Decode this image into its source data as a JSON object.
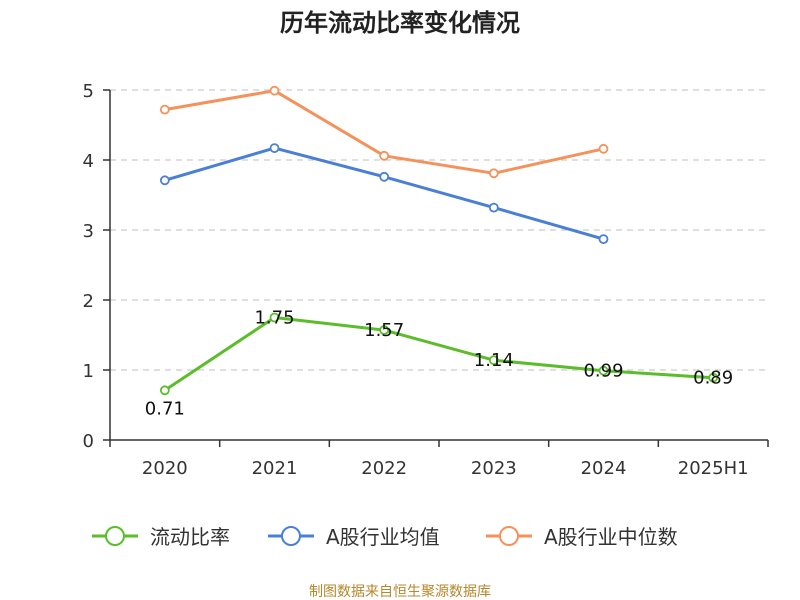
{
  "colors": {
    "current_ratio": "#5bbd2b",
    "industry_avg": "#4a7fd6",
    "industry_median": "#f5915b",
    "axis": "#333333",
    "grid": "#cccccc",
    "source": "#b8862b"
  },
  "chart_data": {
    "type": "line",
    "title": "历年流动比率变化情况",
    "categories": [
      "2020",
      "2021",
      "2022",
      "2023",
      "2024",
      "2025H1"
    ],
    "y_ticks": [
      "0",
      "1",
      "2",
      "3",
      "4",
      "5"
    ],
    "ylim": [
      0,
      5
    ],
    "xlabel": "",
    "ylabel": "",
    "grid": true,
    "legend_position": "bottom",
    "series": [
      {
        "key": "current_ratio",
        "name": "流动比率",
        "values": [
          0.71,
          1.75,
          1.57,
          1.14,
          0.99,
          0.89
        ],
        "labels": [
          "0.71",
          "1.75",
          "1.57",
          "1.14",
          "0.99",
          "0.89"
        ]
      },
      {
        "key": "industry_avg",
        "name": "A股行业均值",
        "values": [
          3.71,
          4.17,
          3.76,
          3.32,
          2.87,
          null
        ]
      },
      {
        "key": "industry_median",
        "name": "A股行业中位数",
        "values": [
          4.72,
          4.99,
          4.06,
          3.81,
          4.16,
          null
        ]
      }
    ]
  },
  "footer": {
    "source": "制图数据来自恒生聚源数据库"
  }
}
